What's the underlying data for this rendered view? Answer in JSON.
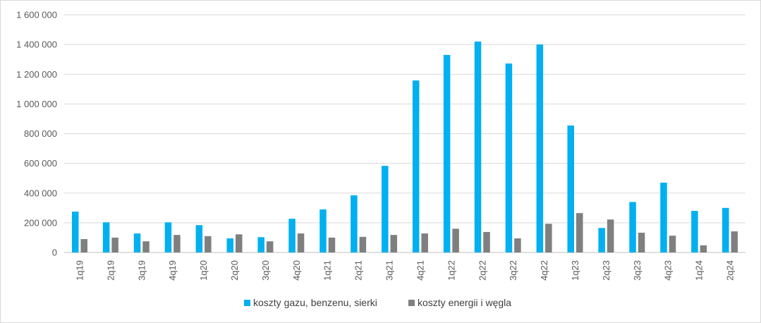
{
  "chart_data": {
    "type": "bar",
    "categories": [
      "1q19",
      "2q19",
      "3q19",
      "4q19",
      "1q20",
      "2q20",
      "3q20",
      "4q20",
      "1q21",
      "2q21",
      "3q21",
      "4q21",
      "1q22",
      "2q22",
      "3q22",
      "4q22",
      "1q23",
      "2q23",
      "3q23",
      "4q23",
      "1q24",
      "2q24"
    ],
    "series": [
      {
        "name": "koszty gazu, benzenu, sierki",
        "color": "#00b0f0",
        "values": [
          275000,
          203000,
          128000,
          203000,
          184000,
          95000,
          103000,
          227000,
          290000,
          385000,
          583000,
          1158000,
          1330000,
          1420000,
          1272000,
          1400000,
          855000,
          165000,
          340000,
          470000,
          280000,
          300000
        ]
      },
      {
        "name": "koszty energii i węgla",
        "color": "#7f7f7f",
        "values": [
          90000,
          100000,
          75000,
          118000,
          110000,
          122000,
          75000,
          128000,
          100000,
          105000,
          118000,
          128000,
          160000,
          138000,
          95000,
          193000,
          265000,
          222000,
          133000,
          113000,
          48000,
          142000
        ]
      }
    ],
    "ylim": [
      0,
      1600000
    ],
    "yticks": [
      0,
      200000,
      400000,
      600000,
      800000,
      1000000,
      1200000,
      1400000,
      1600000
    ],
    "ytick_labels": [
      "0",
      "200 000",
      "400 000",
      "600 000",
      "800 000",
      "1 000 000",
      "1 200 000",
      "1 400 000",
      "1 600 000"
    ],
    "grid": true,
    "legend_position": "bottom"
  }
}
